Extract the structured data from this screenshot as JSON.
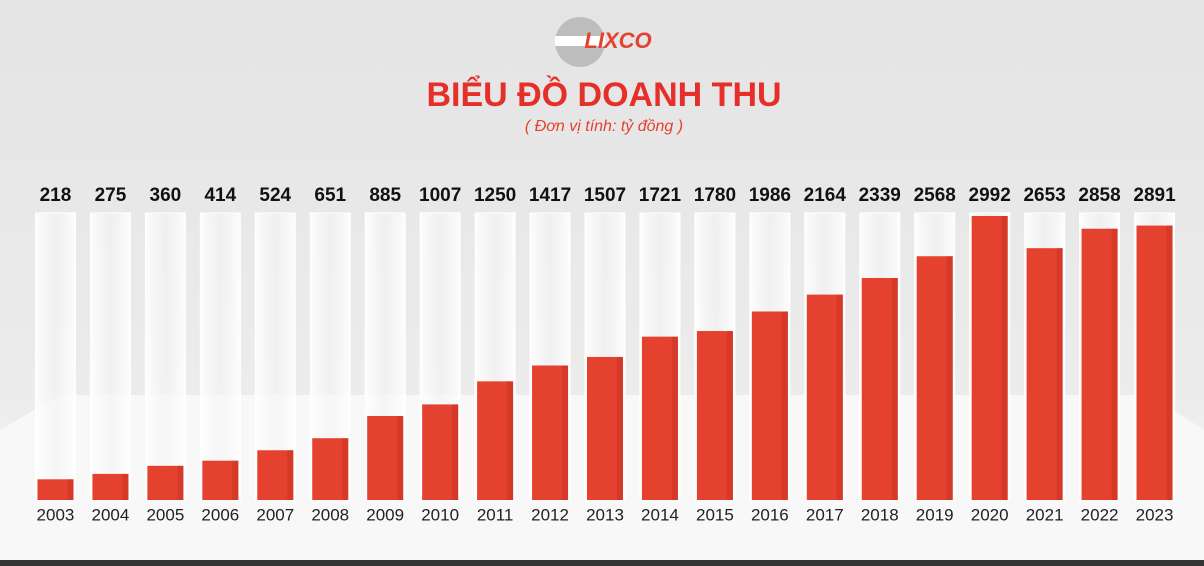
{
  "chart_data": {
    "type": "bar",
    "logo": "LIXCO",
    "title": "BIỂU ĐỒ DOANH THU",
    "subtitle": "( Đơn vị tính: tỷ đồng )",
    "categories": [
      "2003",
      "2004",
      "2005",
      "2006",
      "2007",
      "2008",
      "2009",
      "2010",
      "2011",
      "2012",
      "2013",
      "2014",
      "2015",
      "2016",
      "2017",
      "2018",
      "2019",
      "2020",
      "2021",
      "2022",
      "2023"
    ],
    "values": [
      218,
      275,
      360,
      414,
      524,
      651,
      885,
      1007,
      1250,
      1417,
      1507,
      1721,
      1780,
      1986,
      2164,
      2339,
      2568,
      2992,
      2653,
      2858,
      2891
    ],
    "color": "#e5412f"
  }
}
